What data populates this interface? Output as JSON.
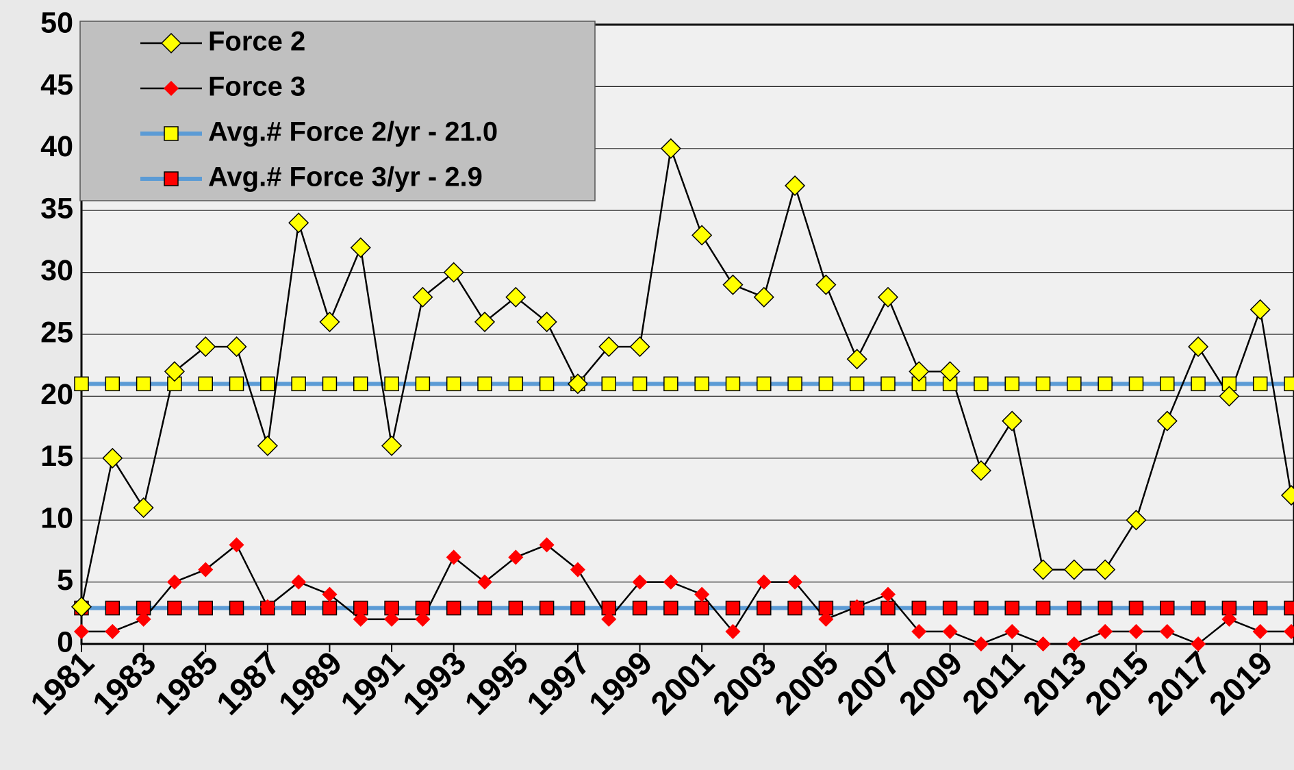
{
  "chart_data": {
    "type": "line",
    "x": [
      1981,
      1982,
      1983,
      1984,
      1985,
      1986,
      1987,
      1988,
      1989,
      1990,
      1991,
      1992,
      1993,
      1994,
      1995,
      1996,
      1997,
      1998,
      1999,
      2000,
      2001,
      2002,
      2003,
      2004,
      2005,
      2006,
      2007,
      2008,
      2009,
      2010,
      2011,
      2012,
      2013,
      2014,
      2015,
      2016,
      2017,
      2018,
      2019,
      2020
    ],
    "xlim": [
      1981,
      2020
    ],
    "xticks": [
      1981,
      1983,
      1985,
      1987,
      1989,
      1991,
      1993,
      1995,
      1997,
      1999,
      2001,
      2003,
      2005,
      2007,
      2009,
      2011,
      2013,
      2015,
      2017,
      2019
    ],
    "ylim": [
      0,
      50
    ],
    "yticks": [
      0,
      5,
      10,
      15,
      20,
      25,
      30,
      35,
      40,
      45,
      50
    ],
    "grid": true,
    "legend": "upper left",
    "series": [
      {
        "name": "Force 2",
        "color": "#ffff00",
        "marker": "diamond",
        "line_color": "#000000",
        "values": [
          3,
          15,
          11,
          22,
          24,
          24,
          16,
          34,
          26,
          32,
          16,
          28,
          30,
          26,
          28,
          26,
          21,
          24,
          24,
          40,
          33,
          29,
          28,
          37,
          29,
          23,
          28,
          22,
          22,
          14,
          18,
          6,
          6,
          6,
          10,
          18,
          24,
          20,
          27,
          12
        ]
      },
      {
        "name": "Force 3",
        "color": "#ff0000",
        "marker": "small-diamond",
        "line_color": "#000000",
        "values": [
          1,
          1,
          2,
          5,
          6,
          8,
          3,
          5,
          4,
          2,
          2,
          2,
          7,
          5,
          7,
          8,
          6,
          2,
          5,
          5,
          4,
          1,
          5,
          5,
          2,
          3,
          4,
          1,
          1,
          0,
          1,
          0,
          0,
          1,
          1,
          1,
          0,
          2,
          1,
          1
        ]
      },
      {
        "name": "Avg.# Force 2/yr - 21.0",
        "color": "#ffff00",
        "marker": "square",
        "line_color": "#5b9bd5",
        "values": [
          21,
          21,
          21,
          21,
          21,
          21,
          21,
          21,
          21,
          21,
          21,
          21,
          21,
          21,
          21,
          21,
          21,
          21,
          21,
          21,
          21,
          21,
          21,
          21,
          21,
          21,
          21,
          21,
          21,
          21,
          21,
          21,
          21,
          21,
          21,
          21,
          21,
          21,
          21,
          21
        ]
      },
      {
        "name": "Avg.# Force 3/yr - 2.9",
        "color": "#ff0000",
        "marker": "square",
        "line_color": "#5b9bd5",
        "values": [
          2.9,
          2.9,
          2.9,
          2.9,
          2.9,
          2.9,
          2.9,
          2.9,
          2.9,
          2.9,
          2.9,
          2.9,
          2.9,
          2.9,
          2.9,
          2.9,
          2.9,
          2.9,
          2.9,
          2.9,
          2.9,
          2.9,
          2.9,
          2.9,
          2.9,
          2.9,
          2.9,
          2.9,
          2.9,
          2.9,
          2.9,
          2.9,
          2.9,
          2.9,
          2.9,
          2.9,
          2.9,
          2.9,
          2.9,
          2.9
        ]
      }
    ]
  }
}
